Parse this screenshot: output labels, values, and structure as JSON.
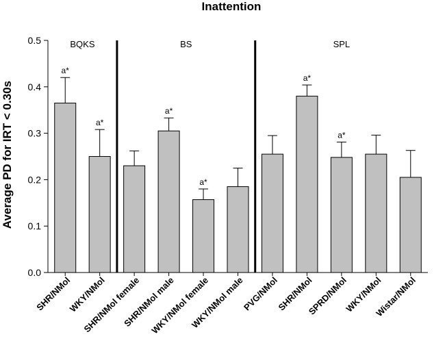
{
  "chart_data": {
    "type": "bar",
    "title": "Inattention",
    "xlabel": "",
    "ylabel": "Average PD for IRT < 0.30s",
    "ylim": [
      0,
      0.5
    ],
    "yticks": [
      "0.0",
      "0.1",
      "0.2",
      "0.3",
      "0.4",
      "0.5"
    ],
    "ytick_values": [
      0,
      0.1,
      0.2,
      0.3,
      0.4,
      0.5
    ],
    "grid": false,
    "categories": [
      "SHR/NMol",
      "WKY/NMol",
      "SHR/NMol female",
      "SHR/NMol male",
      "WKY/NMol female",
      "WKY/NMol male",
      "PVG/NMol",
      "SHR/NMol",
      "SPRD/NMol",
      "WKY/NMol",
      "Wistar/NMol"
    ],
    "values": [
      0.365,
      0.25,
      0.23,
      0.305,
      0.157,
      0.185,
      0.255,
      0.38,
      0.248,
      0.255,
      0.205
    ],
    "error_upper": [
      0.055,
      0.058,
      0.032,
      0.028,
      0.023,
      0.04,
      0.04,
      0.024,
      0.033,
      0.041,
      0.058
    ],
    "annotations": [
      "a*",
      "a*",
      "",
      "a*",
      "a*",
      "",
      "",
      "a*",
      "a*",
      "",
      ""
    ],
    "groups": [
      {
        "label": "BQKS",
        "start": 0,
        "end": 1
      },
      {
        "label": "BS",
        "start": 2,
        "end": 5
      },
      {
        "label": "SPL",
        "start": 6,
        "end": 10
      }
    ],
    "bar_color": "#c0c0c0"
  }
}
